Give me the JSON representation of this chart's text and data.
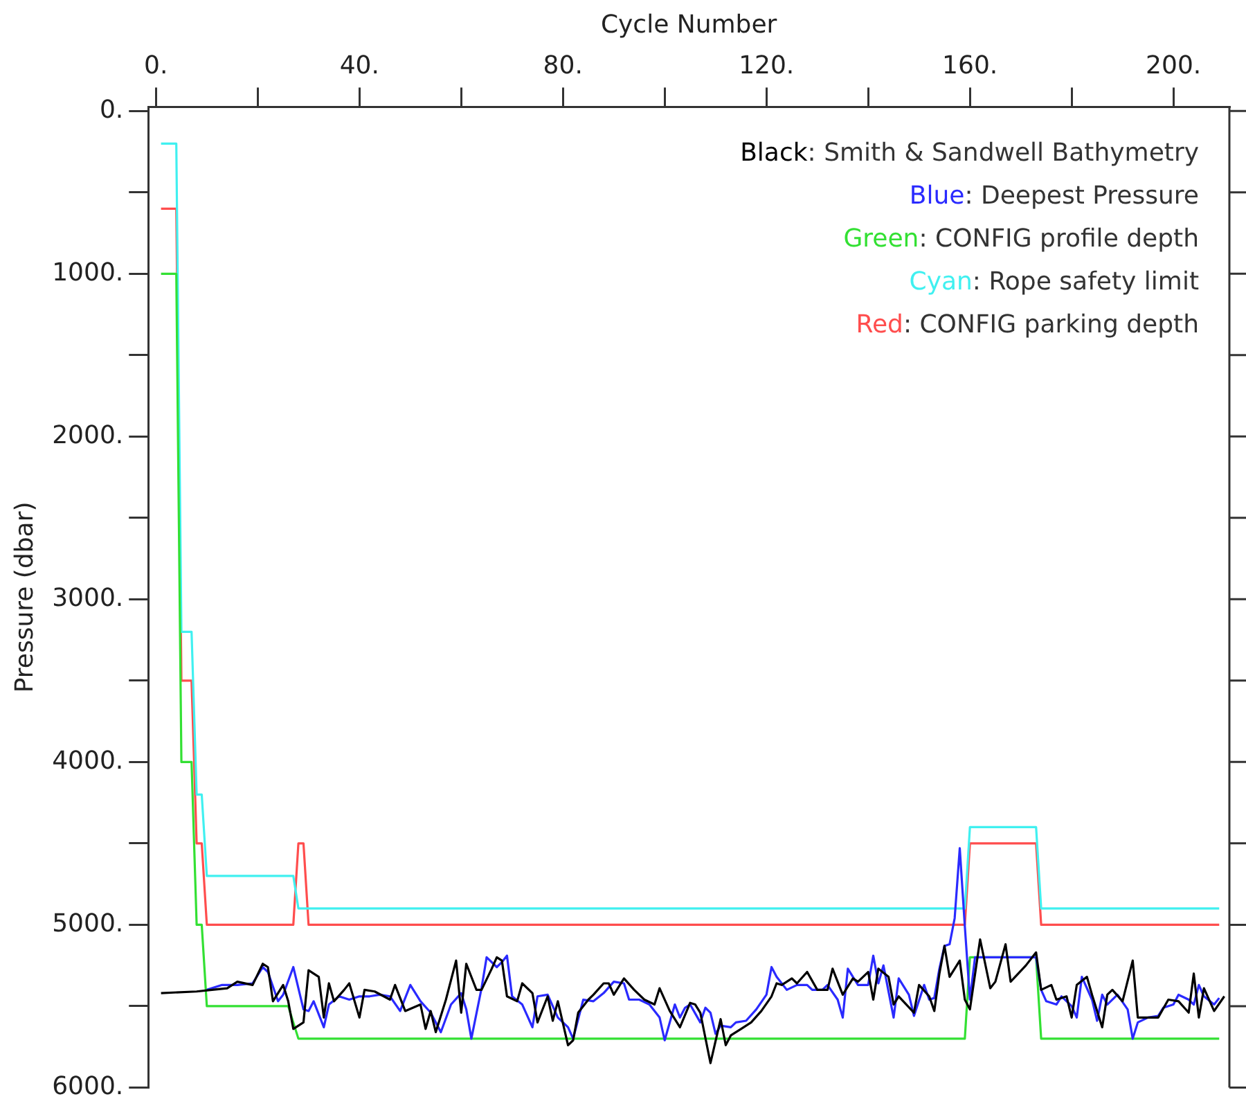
{
  "chart_data": {
    "type": "line",
    "xlabel": "Cycle Number",
    "ylabel": "Pressure (dbar)",
    "xlim": [
      -1.5,
      211
    ],
    "ylim": [
      6000,
      -25
    ],
    "xticks": [
      {
        "value": 0,
        "label": "0."
      },
      {
        "value": 20,
        "label": null
      },
      {
        "value": 40,
        "label": "40."
      },
      {
        "value": 60,
        "label": null
      },
      {
        "value": 80,
        "label": "80."
      },
      {
        "value": 100,
        "label": null
      },
      {
        "value": 120,
        "label": "120."
      },
      {
        "value": 140,
        "label": null
      },
      {
        "value": 160,
        "label": "160."
      },
      {
        "value": 180,
        "label": null
      },
      {
        "value": 200,
        "label": "200."
      }
    ],
    "yticks": [
      {
        "value": 0,
        "label": "0."
      },
      {
        "value": 500,
        "label": null
      },
      {
        "value": 1000,
        "label": "1000."
      },
      {
        "value": 1500,
        "label": null
      },
      {
        "value": 2000,
        "label": "2000."
      },
      {
        "value": 2500,
        "label": null
      },
      {
        "value": 3000,
        "label": "3000."
      },
      {
        "value": 3500,
        "label": null
      },
      {
        "value": 4000,
        "label": "4000."
      },
      {
        "value": 4500,
        "label": null
      },
      {
        "value": 5000,
        "label": "5000."
      },
      {
        "value": 5500,
        "label": null
      },
      {
        "value": 6000,
        "label": "6000."
      }
    ],
    "legend": "top right",
    "marker": "none",
    "series": [
      {
        "name": "Black: Smith & Sandwell Bathymetry",
        "color": "#000000",
        "x": [
          1,
          8,
          11,
          14,
          16,
          19,
          21,
          22,
          23,
          25,
          26,
          27,
          29,
          30,
          32,
          33,
          34,
          35,
          37,
          38,
          40,
          41,
          43,
          46,
          47,
          49,
          52,
          53,
          54,
          55,
          57,
          59,
          60,
          61,
          63,
          64,
          66,
          67,
          68,
          69,
          71,
          72,
          74,
          75,
          77,
          78,
          79,
          81,
          82,
          83,
          85,
          86,
          88,
          89,
          90,
          92,
          94,
          96,
          98,
          99,
          101,
          103,
          105,
          106,
          107,
          109,
          111,
          112,
          113,
          115,
          117,
          119,
          121,
          122,
          123,
          125,
          126,
          128,
          130,
          132,
          133,
          135,
          137,
          138,
          140,
          141,
          142,
          144,
          145,
          146,
          149,
          150,
          152,
          153,
          154,
          155,
          156,
          158,
          159,
          160,
          162,
          164,
          165,
          167,
          168,
          171,
          173,
          174,
          176,
          177,
          179,
          180,
          181,
          183,
          184,
          186,
          187,
          188,
          190,
          192,
          193,
          195,
          197,
          199,
          201,
          203,
          204,
          205,
          206,
          208,
          210
        ],
        "values": [
          5420,
          5410,
          5400,
          5390,
          5350,
          5370,
          5240,
          5260,
          5470,
          5370,
          5470,
          5640,
          5600,
          5280,
          5320,
          5570,
          5360,
          5470,
          5400,
          5360,
          5570,
          5400,
          5410,
          5460,
          5370,
          5530,
          5490,
          5640,
          5530,
          5660,
          5460,
          5220,
          5540,
          5240,
          5400,
          5400,
          5270,
          5200,
          5220,
          5440,
          5470,
          5360,
          5420,
          5600,
          5440,
          5590,
          5470,
          5740,
          5710,
          5540,
          5460,
          5430,
          5360,
          5360,
          5430,
          5330,
          5400,
          5460,
          5490,
          5390,
          5530,
          5630,
          5480,
          5490,
          5540,
          5850,
          5580,
          5740,
          5680,
          5640,
          5600,
          5530,
          5440,
          5360,
          5370,
          5330,
          5360,
          5290,
          5400,
          5400,
          5270,
          5430,
          5330,
          5350,
          5290,
          5460,
          5270,
          5320,
          5490,
          5440,
          5540,
          5370,
          5440,
          5530,
          5300,
          5130,
          5320,
          5220,
          5460,
          5520,
          5090,
          5390,
          5350,
          5120,
          5350,
          5250,
          5170,
          5400,
          5370,
          5460,
          5440,
          5570,
          5370,
          5320,
          5430,
          5630,
          5430,
          5400,
          5470,
          5220,
          5570,
          5570,
          5570,
          5460,
          5470,
          5540,
          5300,
          5570,
          5390,
          5530,
          5440
        ]
      },
      {
        "name": "Blue: Deepest Pressure",
        "color": "#2a2aff",
        "x": [
          10,
          13,
          16,
          19,
          21,
          22,
          24,
          25,
          27,
          29,
          30,
          31,
          33,
          34,
          36,
          38,
          40,
          42,
          44,
          46,
          48,
          50,
          52,
          54,
          56,
          58,
          60,
          61,
          62,
          64,
          65,
          67,
          68,
          69,
          70,
          72,
          74,
          75,
          77,
          79,
          81,
          82,
          84,
          86,
          88,
          90,
          92,
          93,
          95,
          97,
          99,
          100,
          102,
          103,
          104,
          105,
          107,
          108,
          109,
          110,
          111,
          113,
          114,
          116,
          118,
          120,
          121,
          122,
          124,
          126,
          128,
          129,
          131,
          132,
          134,
          135,
          136,
          138,
          140,
          141,
          142,
          143,
          145,
          146,
          148,
          149,
          151,
          152,
          153,
          154,
          155,
          156,
          157,
          158,
          159,
          160,
          161,
          165,
          169,
          173,
          174,
          175,
          177,
          178,
          180,
          181,
          182,
          184,
          185,
          186,
          187,
          189,
          191,
          192,
          193,
          195,
          197,
          198,
          200,
          201,
          203,
          204,
          205,
          206,
          208,
          209
        ],
        "values": [
          5400,
          5370,
          5370,
          5360,
          5260,
          5290,
          5470,
          5430,
          5260,
          5520,
          5530,
          5470,
          5630,
          5490,
          5440,
          5460,
          5440,
          5440,
          5430,
          5440,
          5530,
          5370,
          5470,
          5540,
          5660,
          5490,
          5420,
          5520,
          5700,
          5390,
          5200,
          5260,
          5230,
          5190,
          5440,
          5490,
          5630,
          5440,
          5430,
          5570,
          5630,
          5700,
          5460,
          5470,
          5420,
          5350,
          5360,
          5460,
          5460,
          5490,
          5570,
          5710,
          5490,
          5570,
          5510,
          5490,
          5600,
          5510,
          5540,
          5670,
          5620,
          5630,
          5600,
          5590,
          5520,
          5430,
          5260,
          5320,
          5400,
          5370,
          5370,
          5400,
          5400,
          5370,
          5460,
          5570,
          5270,
          5370,
          5370,
          5190,
          5360,
          5250,
          5570,
          5330,
          5430,
          5560,
          5370,
          5460,
          5450,
          5270,
          5130,
          5120,
          4960,
          4530,
          5010,
          5460,
          5200,
          5200,
          5200,
          5200,
          5400,
          5470,
          5490,
          5440,
          5500,
          5570,
          5320,
          5460,
          5590,
          5430,
          5490,
          5430,
          5520,
          5700,
          5600,
          5570,
          5560,
          5510,
          5490,
          5430,
          5460,
          5490,
          5370,
          5440,
          5490,
          5450
        ]
      },
      {
        "name": "Green: CONFIG profile depth",
        "color": "#33e033",
        "x": [
          1,
          4,
          5,
          7,
          8,
          9,
          10,
          26,
          28,
          159,
          160,
          173,
          174,
          209
        ],
        "values": [
          1000,
          1000,
          4000,
          4000,
          5000,
          5000,
          5500,
          5500,
          5700,
          5700,
          5200,
          5200,
          5700,
          5700
        ]
      },
      {
        "name": "Cyan: Rope safety limit",
        "color": "#40f0f0",
        "x": [
          1,
          4,
          5,
          7,
          8,
          9,
          10,
          27,
          28,
          159,
          160,
          173,
          174,
          209
        ],
        "values": [
          200,
          200,
          3200,
          3200,
          4200,
          4200,
          4700,
          4700,
          4900,
          4900,
          4400,
          4400,
          4900,
          4900
        ]
      },
      {
        "name": "Red: CONFIG parking depth",
        "color": "#ff4d4d",
        "x": [
          1,
          4,
          5,
          7,
          8,
          9,
          10,
          27,
          28,
          29,
          30,
          159,
          160,
          173,
          174,
          209
        ],
        "values": [
          600,
          600,
          3500,
          3500,
          4500,
          4500,
          5000,
          5000,
          4500,
          4500,
          5000,
          5000,
          4500,
          4500,
          5000,
          5000
        ]
      }
    ]
  }
}
